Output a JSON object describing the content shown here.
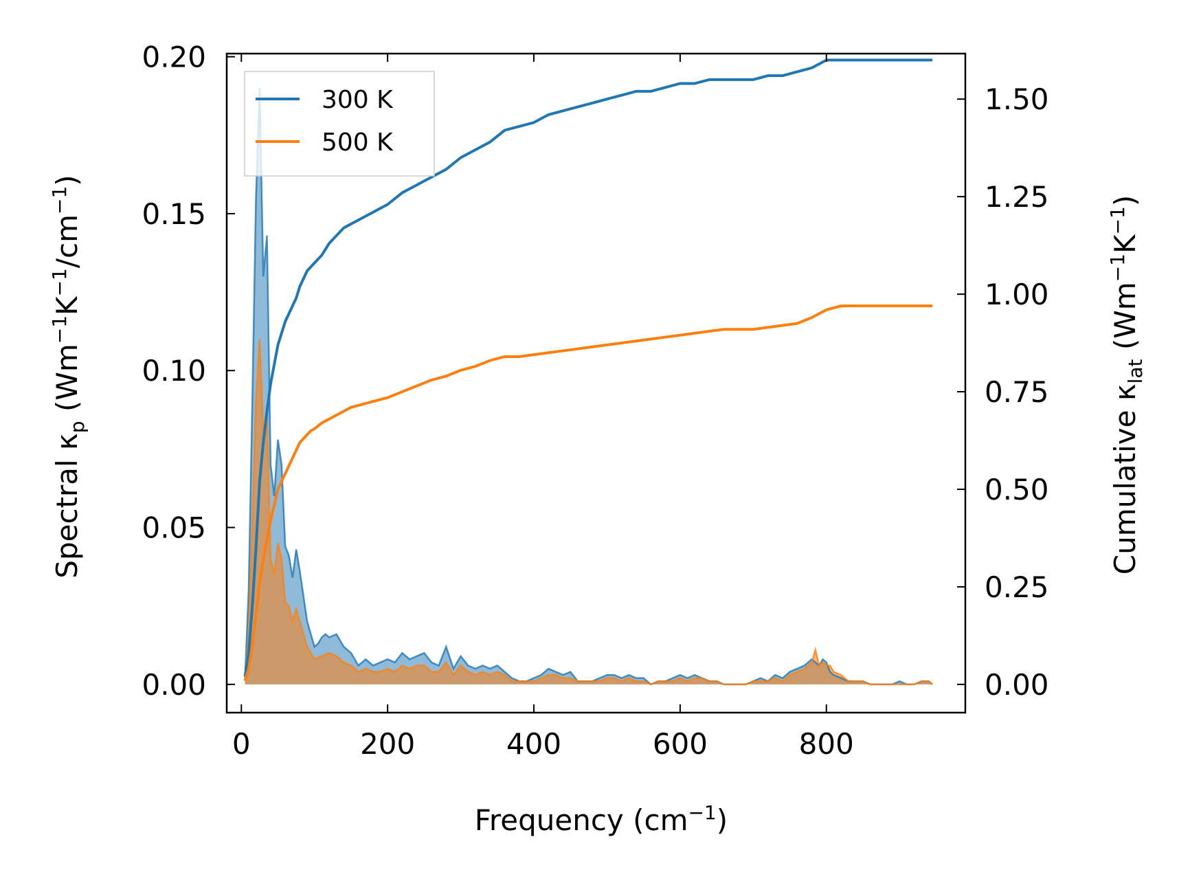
{
  "chart_data": {
    "type": "line",
    "title": "",
    "xlabel": "Frequency (cm",
    "xlabel_sup": "−1",
    "xlabel_end": ")",
    "ylabel_left": {
      "prefix": "Spectral κ",
      "sub": "p",
      "mid1": " (Wm",
      "sup1": "−1",
      "mid2": "K",
      "sup2": "−1",
      "mid3": "/cm",
      "sup3": "−1",
      "end": ")"
    },
    "ylabel_right": {
      "prefix": "Cumulative κ",
      "sub": "lat",
      "mid1": " (Wm",
      "sup1": "−1",
      "mid2": "K",
      "sup2": "−1",
      "end": ")"
    },
    "xlim": [
      -20,
      990
    ],
    "ylim_left": [
      -0.009,
      0.201
    ],
    "ylim_right": [
      -0.0724,
      1.6166
    ],
    "x_ticks": [
      0,
      200,
      400,
      600,
      800
    ],
    "x_tick_labels": [
      "0",
      "200",
      "400",
      "600",
      "800"
    ],
    "y_left_ticks": [
      0.0,
      0.05,
      0.1,
      0.15,
      0.2
    ],
    "y_left_tick_labels": [
      "0.00",
      "0.05",
      "0.10",
      "0.15",
      "0.20"
    ],
    "y_right_ticks": [
      0.0,
      0.25,
      0.5,
      0.75,
      1.0,
      1.25,
      1.5
    ],
    "y_right_tick_labels": [
      "0.00",
      "0.25",
      "0.50",
      "0.75",
      "1.00",
      "1.25",
      "1.50"
    ],
    "legend": {
      "placement": "top-left",
      "entries": [
        {
          "label": "300 K",
          "color": "#1f77b4"
        },
        {
          "label": "500 K",
          "color": "#ff7f0e"
        }
      ]
    },
    "series": [
      {
        "name": "300 K",
        "color": "#1f77b4",
        "spectral": {
          "x": [
            5,
            10,
            15,
            20,
            25,
            30,
            35,
            40,
            45,
            50,
            55,
            60,
            65,
            70,
            75,
            80,
            85,
            90,
            95,
            100,
            105,
            110,
            115,
            120,
            130,
            140,
            150,
            160,
            170,
            180,
            190,
            200,
            210,
            220,
            230,
            240,
            250,
            260,
            270,
            280,
            290,
            300,
            310,
            320,
            330,
            340,
            350,
            360,
            370,
            380,
            390,
            400,
            410,
            420,
            430,
            440,
            450,
            460,
            470,
            480,
            490,
            500,
            510,
            520,
            530,
            540,
            550,
            560,
            570,
            580,
            590,
            600,
            610,
            620,
            630,
            640,
            650,
            660,
            670,
            680,
            690,
            700,
            710,
            720,
            730,
            740,
            750,
            760,
            770,
            780,
            785,
            790,
            795,
            800,
            805,
            810,
            820,
            830,
            840,
            850,
            860,
            870,
            880,
            890,
            900,
            910,
            920,
            930,
            940,
            945
          ],
          "y": [
            0.002,
            0.03,
            0.09,
            0.155,
            0.19,
            0.13,
            0.143,
            0.07,
            0.06,
            0.078,
            0.07,
            0.044,
            0.041,
            0.034,
            0.043,
            0.036,
            0.028,
            0.02,
            0.016,
            0.012,
            0.013,
            0.015,
            0.016,
            0.015,
            0.016,
            0.012,
            0.01,
            0.006,
            0.008,
            0.006,
            0.007,
            0.008,
            0.007,
            0.01,
            0.008,
            0.009,
            0.01,
            0.007,
            0.006,
            0.012,
            0.005,
            0.009,
            0.006,
            0.005,
            0.006,
            0.005,
            0.006,
            0.004,
            0.002,
            0.001,
            0.001,
            0.002,
            0.003,
            0.005,
            0.004,
            0.003,
            0.004,
            0.001,
            0.001,
            0.001,
            0.002,
            0.003,
            0.003,
            0.002,
            0.003,
            0.002,
            0.002,
            0.0,
            0.001,
            0.001,
            0.002,
            0.003,
            0.002,
            0.003,
            0.002,
            0.001,
            0.001,
            0.0,
            0.0,
            0.0,
            0.0,
            0.001,
            0.002,
            0.001,
            0.003,
            0.002,
            0.004,
            0.005,
            0.006,
            0.008,
            0.007,
            0.006,
            0.008,
            0.007,
            0.004,
            0.003,
            0.002,
            0.001,
            0.001,
            0.001,
            0.0,
            0.0,
            0.0,
            0.0,
            0.001,
            0.0,
            0.0,
            0.001,
            0.001,
            0.0
          ]
        },
        "cumulative": {
          "x": [
            5,
            10,
            15,
            20,
            25,
            30,
            35,
            40,
            45,
            50,
            55,
            60,
            65,
            70,
            75,
            80,
            85,
            90,
            95,
            100,
            110,
            120,
            130,
            140,
            150,
            160,
            170,
            180,
            190,
            200,
            220,
            240,
            260,
            270,
            280,
            300,
            320,
            340,
            360,
            380,
            400,
            420,
            440,
            460,
            480,
            500,
            520,
            540,
            560,
            580,
            600,
            620,
            640,
            660,
            680,
            700,
            720,
            740,
            760,
            780,
            790,
            800,
            820,
            840,
            860,
            880,
            900,
            920,
            940,
            945
          ],
          "y": [
            0.02,
            0.08,
            0.2,
            0.35,
            0.52,
            0.62,
            0.7,
            0.77,
            0.82,
            0.87,
            0.9,
            0.93,
            0.95,
            0.97,
            0.99,
            1.02,
            1.04,
            1.06,
            1.07,
            1.08,
            1.1,
            1.13,
            1.15,
            1.17,
            1.18,
            1.19,
            1.2,
            1.21,
            1.22,
            1.23,
            1.26,
            1.28,
            1.3,
            1.31,
            1.32,
            1.35,
            1.37,
            1.39,
            1.42,
            1.43,
            1.44,
            1.46,
            1.47,
            1.48,
            1.49,
            1.5,
            1.51,
            1.52,
            1.52,
            1.53,
            1.54,
            1.54,
            1.55,
            1.55,
            1.55,
            1.55,
            1.56,
            1.56,
            1.57,
            1.58,
            1.59,
            1.6,
            1.6,
            1.6,
            1.6,
            1.6,
            1.6,
            1.6,
            1.6,
            1.6
          ]
        }
      },
      {
        "name": "500 K",
        "color": "#ff7f0e",
        "spectral": {
          "x": [
            5,
            10,
            15,
            20,
            25,
            30,
            35,
            40,
            45,
            50,
            55,
            60,
            65,
            70,
            75,
            80,
            85,
            90,
            95,
            100,
            110,
            120,
            130,
            140,
            150,
            160,
            170,
            180,
            190,
            200,
            210,
            220,
            230,
            240,
            250,
            260,
            270,
            280,
            290,
            300,
            310,
            320,
            330,
            340,
            350,
            360,
            370,
            380,
            390,
            400,
            410,
            420,
            430,
            440,
            450,
            460,
            470,
            480,
            490,
            500,
            510,
            520,
            530,
            540,
            550,
            560,
            570,
            580,
            590,
            600,
            610,
            620,
            630,
            640,
            650,
            660,
            670,
            680,
            690,
            700,
            710,
            720,
            730,
            740,
            750,
            760,
            770,
            780,
            785,
            790,
            795,
            800,
            805,
            810,
            820,
            830,
            840,
            850,
            860,
            870,
            880,
            890,
            900,
            910,
            920,
            930,
            940,
            945
          ],
          "y": [
            0.001,
            0.015,
            0.05,
            0.09,
            0.11,
            0.08,
            0.085,
            0.04,
            0.035,
            0.045,
            0.04,
            0.026,
            0.025,
            0.02,
            0.024,
            0.02,
            0.016,
            0.012,
            0.01,
            0.008,
            0.009,
            0.01,
            0.009,
            0.007,
            0.006,
            0.004,
            0.005,
            0.004,
            0.004,
            0.005,
            0.004,
            0.006,
            0.005,
            0.006,
            0.006,
            0.004,
            0.004,
            0.007,
            0.003,
            0.006,
            0.004,
            0.003,
            0.004,
            0.003,
            0.004,
            0.003,
            0.001,
            0.001,
            0.001,
            0.001,
            0.002,
            0.003,
            0.003,
            0.002,
            0.002,
            0.001,
            0.001,
            0.001,
            0.001,
            0.002,
            0.002,
            0.001,
            0.002,
            0.001,
            0.001,
            0.0,
            0.001,
            0.001,
            0.001,
            0.002,
            0.001,
            0.002,
            0.002,
            0.001,
            0.001,
            0.0,
            0.0,
            0.0,
            0.0,
            0.001,
            0.001,
            0.001,
            0.002,
            0.001,
            0.003,
            0.004,
            0.005,
            0.007,
            0.011,
            0.006,
            0.007,
            0.006,
            0.006,
            0.004,
            0.003,
            0.001,
            0.001,
            0.001,
            0.0,
            0.0,
            0.0,
            0.0,
            0.0,
            0.0,
            0.0,
            0.001,
            0.001,
            0.0
          ]
        },
        "cumulative": {
          "x": [
            5,
            10,
            15,
            20,
            25,
            30,
            35,
            40,
            45,
            50,
            55,
            60,
            65,
            70,
            75,
            80,
            85,
            90,
            95,
            100,
            110,
            120,
            130,
            140,
            150,
            160,
            170,
            180,
            190,
            200,
            220,
            240,
            260,
            270,
            280,
            300,
            320,
            340,
            360,
            380,
            400,
            420,
            440,
            460,
            480,
            500,
            520,
            540,
            560,
            580,
            600,
            620,
            640,
            660,
            680,
            700,
            720,
            740,
            760,
            780,
            790,
            800,
            820,
            840,
            860,
            880,
            900,
            920,
            940,
            945
          ],
          "y": [
            0.01,
            0.04,
            0.1,
            0.18,
            0.26,
            0.32,
            0.37,
            0.42,
            0.46,
            0.5,
            0.52,
            0.54,
            0.56,
            0.58,
            0.6,
            0.62,
            0.63,
            0.64,
            0.65,
            0.655,
            0.67,
            0.68,
            0.69,
            0.7,
            0.71,
            0.715,
            0.72,
            0.725,
            0.73,
            0.735,
            0.75,
            0.765,
            0.78,
            0.785,
            0.79,
            0.805,
            0.815,
            0.83,
            0.84,
            0.84,
            0.845,
            0.85,
            0.855,
            0.86,
            0.865,
            0.87,
            0.875,
            0.88,
            0.885,
            0.89,
            0.895,
            0.9,
            0.905,
            0.91,
            0.91,
            0.91,
            0.915,
            0.92,
            0.925,
            0.94,
            0.95,
            0.96,
            0.97,
            0.97,
            0.97,
            0.97,
            0.97,
            0.97,
            0.97,
            0.97
          ]
        }
      }
    ]
  }
}
